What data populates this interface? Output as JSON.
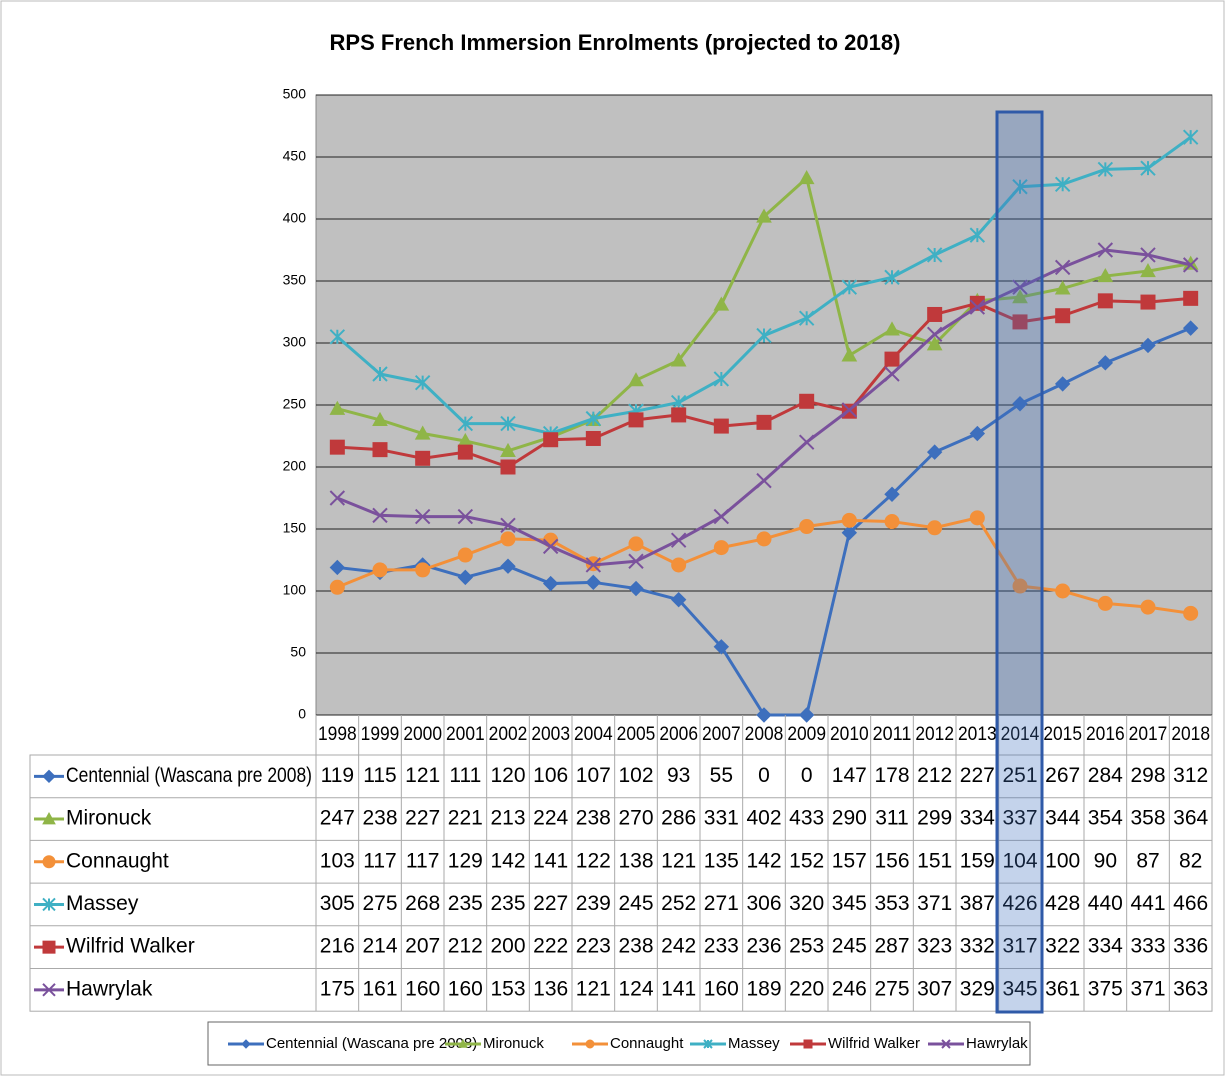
{
  "chart_data": {
    "type": "line",
    "title": "RPS French Immersion Enrolments (projected to 2018)",
    "categories": [
      "1998",
      "1999",
      "2000",
      "2001",
      "2002",
      "2003",
      "2004",
      "2005",
      "2006",
      "2007",
      "2008",
      "2009",
      "2010",
      "2011",
      "2012",
      "2013",
      "2014",
      "2015",
      "2016",
      "2017",
      "2018"
    ],
    "ylim": [
      0,
      500
    ],
    "yticks": [
      0,
      50,
      100,
      150,
      200,
      250,
      300,
      350,
      400,
      450,
      500
    ],
    "grid": true,
    "series": [
      {
        "name": "Centennial (Wascana pre 2008)",
        "color": "#3d6fbd",
        "marker": "diamond",
        "values": [
          119,
          115,
          121,
          111,
          120,
          106,
          107,
          102,
          93,
          55,
          0,
          0,
          147,
          178,
          212,
          227,
          251,
          267,
          284,
          298,
          312
        ]
      },
      {
        "name": "Mironuck",
        "color": "#8fb547",
        "marker": "triangle",
        "values": [
          247,
          238,
          227,
          221,
          213,
          224,
          238,
          270,
          286,
          331,
          402,
          433,
          290,
          311,
          299,
          334,
          337,
          344,
          354,
          358,
          364
        ]
      },
      {
        "name": "Connaught",
        "color": "#f39039",
        "marker": "circle",
        "values": [
          103,
          117,
          117,
          129,
          142,
          141,
          122,
          138,
          121,
          135,
          142,
          152,
          157,
          156,
          151,
          159,
          104,
          100,
          90,
          87,
          82
        ]
      },
      {
        "name": "Massey",
        "color": "#3fb0c4",
        "marker": "star",
        "values": [
          305,
          275,
          268,
          235,
          235,
          227,
          239,
          245,
          252,
          271,
          306,
          320,
          345,
          353,
          371,
          387,
          426,
          428,
          440,
          441,
          466
        ]
      },
      {
        "name": "Wilfrid Walker",
        "color": "#c0393b",
        "marker": "square",
        "values": [
          216,
          214,
          207,
          212,
          200,
          222,
          223,
          238,
          242,
          233,
          236,
          253,
          245,
          287,
          323,
          332,
          317,
          322,
          334,
          333,
          336
        ]
      },
      {
        "name": "Hawrylak",
        "color": "#7a519c",
        "marker": "x",
        "values": [
          175,
          161,
          160,
          160,
          153,
          136,
          121,
          124,
          141,
          160,
          189,
          220,
          246,
          275,
          307,
          329,
          345,
          361,
          375,
          371,
          363
        ]
      }
    ]
  }
}
